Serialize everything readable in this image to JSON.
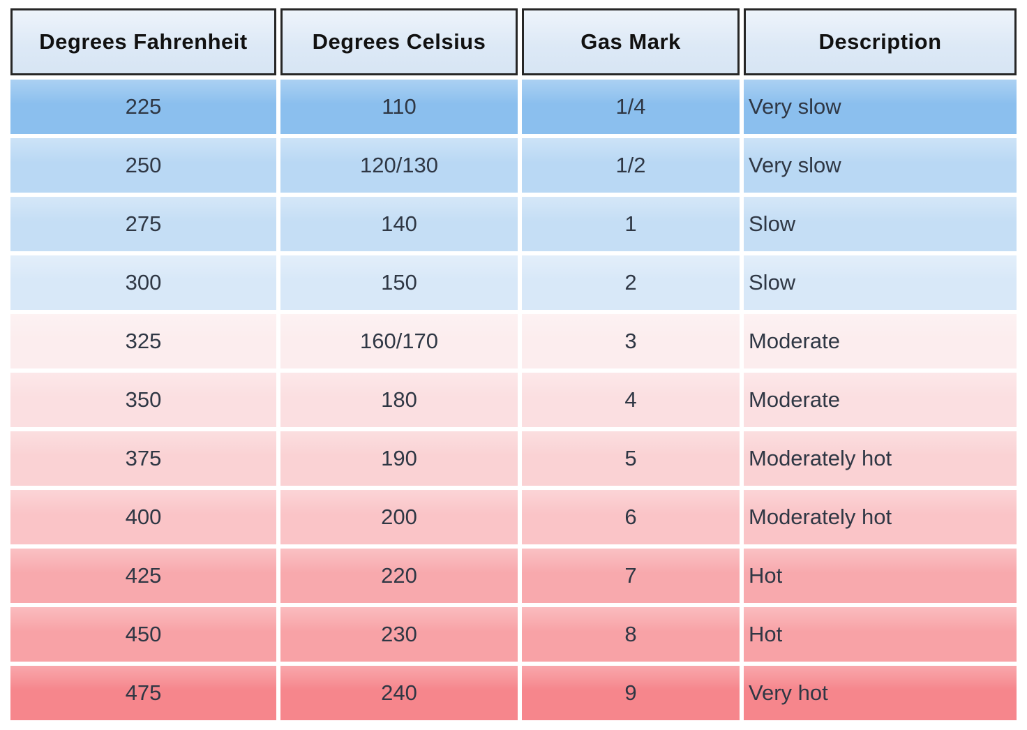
{
  "chart_data": {
    "type": "table",
    "columns": [
      "Degrees Fahrenheit",
      "Degrees Celsius",
      "Gas Mark",
      "Description"
    ],
    "rows": [
      [
        "225",
        "110",
        "1/4",
        "Very slow"
      ],
      [
        "250",
        "120/130",
        "1/2",
        "Very slow"
      ],
      [
        "275",
        "140",
        "1",
        "Slow"
      ],
      [
        "300",
        "150",
        "2",
        "Slow"
      ],
      [
        "325",
        "160/170",
        "3",
        "Moderate"
      ],
      [
        "350",
        "180",
        "4",
        "Moderate"
      ],
      [
        "375",
        "190",
        "5",
        "Moderately hot"
      ],
      [
        "400",
        "200",
        "6",
        "Moderately hot"
      ],
      [
        "425",
        "220",
        "7",
        "Hot"
      ],
      [
        "450",
        "230",
        "8",
        "Hot"
      ],
      [
        "475",
        "240",
        "9",
        "Very hot"
      ]
    ],
    "layout": {
      "grid": "white 6px gutters between cells",
      "header_style": "bordered light-blue cells",
      "color_ramp": "blue (cool) at top to red (hot) at bottom"
    }
  },
  "style": {
    "page_background": "#ffffff",
    "header_background_top": "#eef4fb",
    "header_background_bottom": "#d7e5f4",
    "header_border_color": "#262626",
    "header_text_color": "#111111",
    "body_text_color": "#2f3744",
    "gutter_color": "#ffffff",
    "row_colors": [
      "#8bbfee",
      "#b9d8f4",
      "#c5def5",
      "#d8e8f8",
      "#fcedee",
      "#fbdfe1",
      "#fad2d4",
      "#fac4c7",
      "#f8a9ad",
      "#f8a2a6",
      "#f6868c"
    ]
  }
}
